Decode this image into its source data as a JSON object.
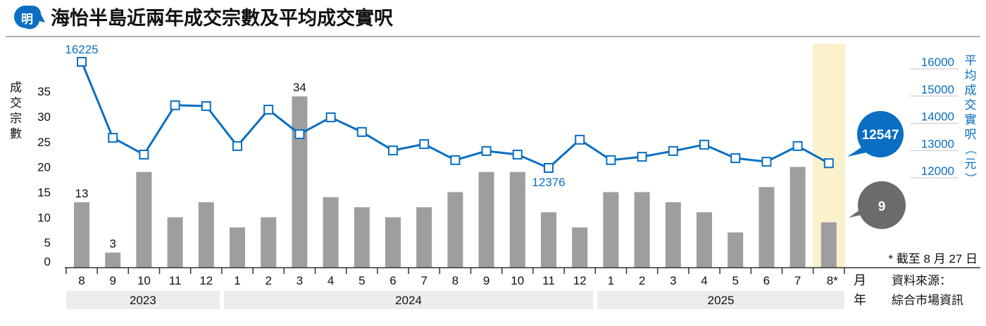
{
  "header": {
    "logo_text": "明",
    "title": "海怡半島近兩年成交宗數及平均成交實呎"
  },
  "colors": {
    "bar": "#9e9e9e",
    "line": "#0a6fc2",
    "highlight": "#fbf1cc",
    "year_band": "#ececec",
    "bubble_grey": "#6b6b6b"
  },
  "chart_data": {
    "type": "bar+line",
    "title": "海怡半島近兩年成交宗數及平均成交實呎",
    "categories": [
      "8",
      "9",
      "10",
      "11",
      "12",
      "1",
      "2",
      "3",
      "4",
      "5",
      "6",
      "7",
      "8",
      "9",
      "10",
      "11",
      "12",
      "1",
      "2",
      "3",
      "4",
      "5",
      "6",
      "7",
      "8*"
    ],
    "years": [
      {
        "label": "2023",
        "from": 0,
        "to": 4
      },
      {
        "label": "2024",
        "from": 5,
        "to": 16
      },
      {
        "label": "2025",
        "from": 17,
        "to": 24
      }
    ],
    "series": [
      {
        "name": "成交宗數",
        "type": "bar",
        "axis": "left",
        "values": [
          13,
          3,
          19,
          10,
          13,
          8,
          10,
          34,
          14,
          12,
          10,
          12,
          15,
          19,
          19,
          11,
          8,
          15,
          15,
          13,
          11,
          7,
          16,
          20,
          9
        ]
      },
      {
        "name": "平均成交實呎（元）",
        "type": "line",
        "axis": "right",
        "values": [
          16225,
          13470,
          12860,
          14650,
          14620,
          13170,
          14490,
          13600,
          14210,
          13680,
          13010,
          13240,
          12660,
          12990,
          12860,
          12376,
          13400,
          12660,
          12780,
          12990,
          13220,
          12730,
          12600,
          13170,
          12547
        ]
      }
    ],
    "data_labels": {
      "bars": [
        {
          "index": 0,
          "text": "13"
        },
        {
          "index": 1,
          "text": "3"
        },
        {
          "index": 7,
          "text": "34"
        }
      ],
      "line": [
        {
          "index": 0,
          "text": "16225"
        },
        {
          "index": 15,
          "text": "12376"
        }
      ]
    },
    "ylabel_left": "成交宗數",
    "ylabel_right": "平均成交實呎（元）",
    "left_ticks": [
      "0",
      "5",
      "10",
      "15",
      "20",
      "25",
      "30",
      "35"
    ],
    "right_ticks": [
      "12000",
      "13000",
      "14000",
      "15000",
      "16000"
    ],
    "ylim_left": [
      0,
      35
    ],
    "ylim_right": [
      12000,
      16000
    ],
    "x_month_label": "月",
    "x_year_label": "年",
    "callouts": {
      "line_latest": "12547",
      "bar_latest": "9"
    },
    "footnote": "* 截至 8 月 27 日",
    "source_label": "資料來源：",
    "source": "綜合市場資訊"
  }
}
